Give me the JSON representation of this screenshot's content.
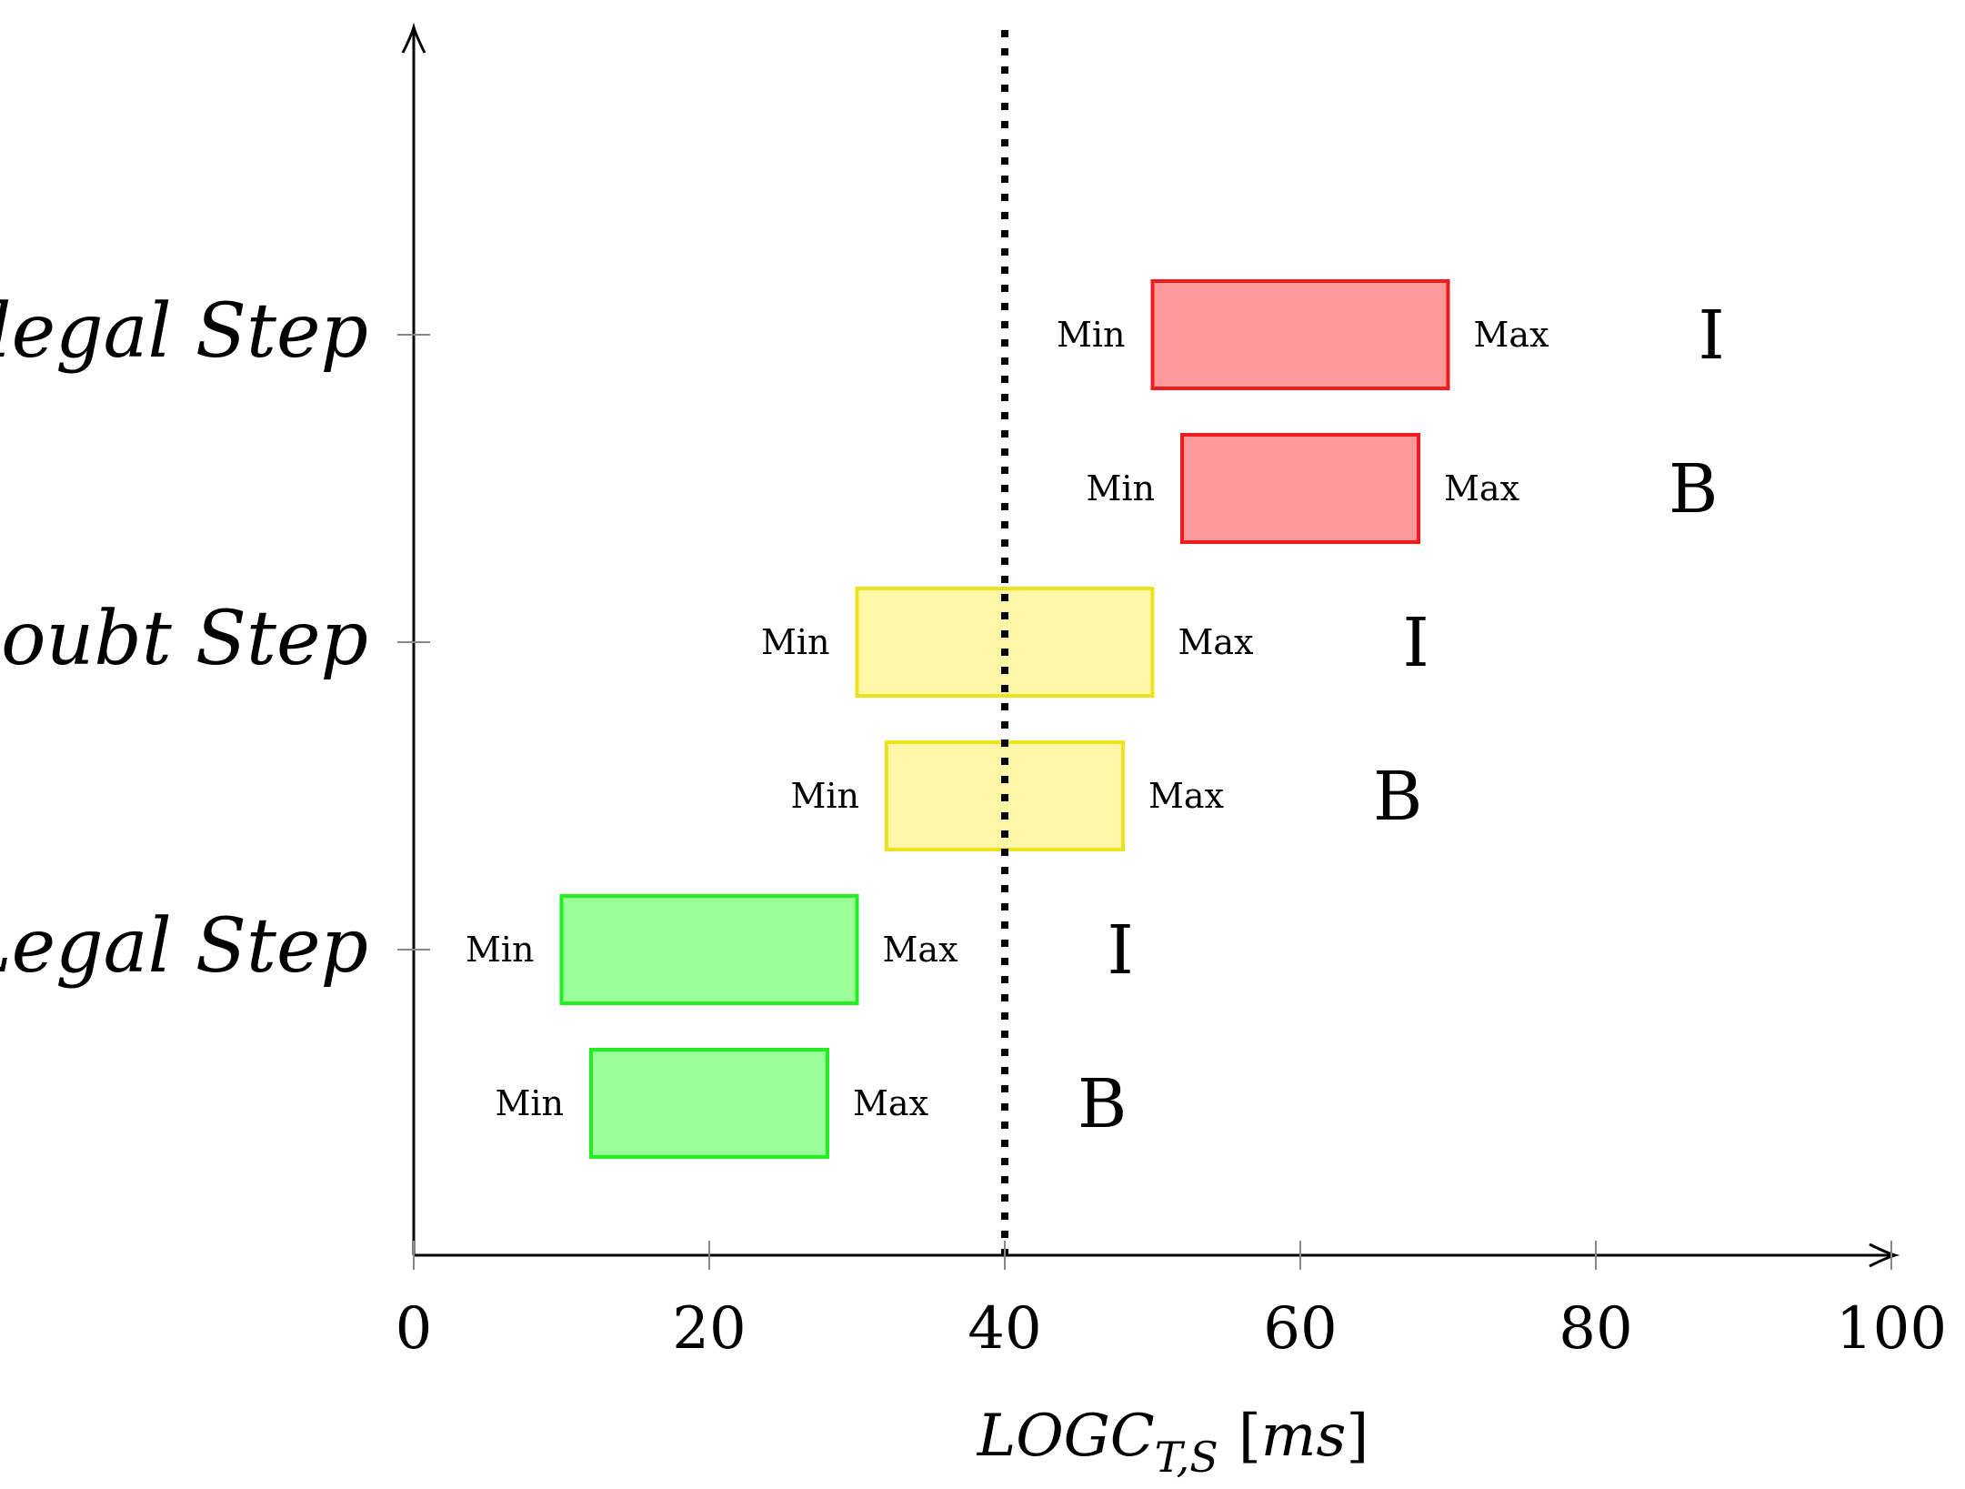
{
  "chart_data": {
    "type": "bar",
    "orientation": "horizontal-range",
    "xlim": [
      0,
      100
    ],
    "x_ticks": [
      0,
      20,
      40,
      60,
      80,
      100
    ],
    "threshold_x": 40,
    "xlabel": {
      "main": "LOGC",
      "subscript": "T,S",
      "unit_open": "[",
      "unit": "ms",
      "unit_close": "]"
    },
    "categories": [
      "Illegal Step",
      "Doubt Step",
      "Legal Step"
    ],
    "min_label": "Min",
    "max_label": "Max",
    "colors": {
      "Illegal Step": {
        "fill": "#ff9999",
        "stroke": "#ee1c1c"
      },
      "Doubt Step": {
        "fill": "#fdf7a7",
        "stroke": "#ede21b"
      },
      "Legal Step": {
        "fill": "#99ff99",
        "stroke": "#22ee22"
      }
    },
    "series": [
      {
        "category": "Illegal Step",
        "name": "I",
        "min": 50,
        "max": 70
      },
      {
        "category": "Illegal Step",
        "name": "B",
        "min": 52,
        "max": 68
      },
      {
        "category": "Doubt Step",
        "name": "I",
        "min": 30,
        "max": 50
      },
      {
        "category": "Doubt Step",
        "name": "B",
        "min": 32,
        "max": 48
      },
      {
        "category": "Legal Step",
        "name": "I",
        "min": 10,
        "max": 30
      },
      {
        "category": "Legal Step",
        "name": "B",
        "min": 12,
        "max": 28
      }
    ]
  }
}
